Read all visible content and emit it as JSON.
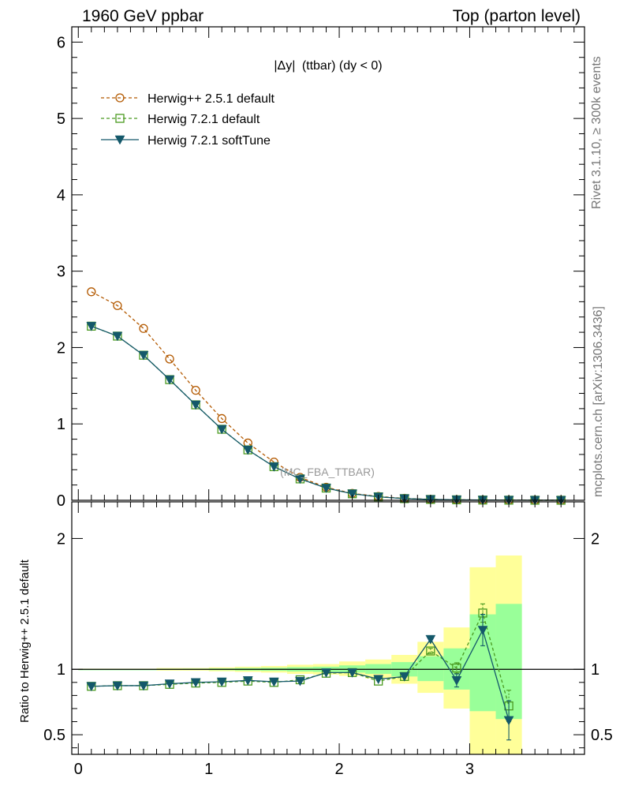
{
  "header": {
    "left": "1960 GeV ppbar",
    "right": "Top (parton level)"
  },
  "side_labels": {
    "rivet": "Rivet 3.1.10, ≥ 300k events",
    "mcplots": "mcplots.cern.ch [arXiv:1306.3436]"
  },
  "observable": {
    "main": "|Δy|",
    "sub": "(ttbar) (dy < 0)"
  },
  "watermark": "(MC_FBA_TTBAR)",
  "ratio_ylabel": "Ratio to Herwig++ 2.5.1 default",
  "colors": {
    "herwigpp": "#b35900",
    "herwig721": "#4a9a20",
    "softtune": "#14586a",
    "band_yellow": "#ffff99",
    "band_green": "#99ff99"
  },
  "chart_data": [
    {
      "type": "line",
      "panel": "main",
      "xlim": [
        -0.05,
        3.88
      ],
      "ylim": [
        0,
        6.2
      ],
      "yticks": [
        "0",
        "1",
        "2",
        "3",
        "4",
        "5",
        "6"
      ],
      "x": [
        0.1,
        0.3,
        0.5,
        0.7,
        0.9,
        1.1,
        1.3,
        1.5,
        1.7,
        1.9,
        2.1,
        2.3,
        2.5,
        2.7,
        2.9,
        3.1,
        3.3,
        3.5,
        3.7
      ],
      "series": [
        {
          "name": "Herwig++ 2.5.1 default",
          "marker": "open-circle",
          "style": "dashed",
          "values": [
            2.73,
            2.55,
            2.25,
            1.85,
            1.44,
            1.07,
            0.75,
            0.5,
            0.3,
            0.17,
            0.09,
            0.05,
            0.025,
            0.012,
            0.006,
            0.003,
            0.0015,
            0.0008,
            0.0004
          ]
        },
        {
          "name": "Herwig 7.2.1 default",
          "marker": "open-square",
          "style": "dashed",
          "values": [
            2.28,
            2.15,
            1.9,
            1.58,
            1.25,
            0.93,
            0.66,
            0.44,
            0.28,
            0.16,
            0.085,
            0.045,
            0.022,
            0.011,
            0.006,
            0.003,
            0.0015,
            0.0008,
            0.0004
          ]
        },
        {
          "name": "Herwig 7.2.1 softTune",
          "marker": "filled-triangle-down",
          "style": "solid",
          "values": [
            2.28,
            2.15,
            1.9,
            1.58,
            1.25,
            0.93,
            0.66,
            0.44,
            0.28,
            0.16,
            0.085,
            0.045,
            0.022,
            0.011,
            0.006,
            0.003,
            0.0015,
            0.0008,
            0.0004
          ]
        }
      ]
    },
    {
      "type": "line",
      "panel": "ratio",
      "xlim": [
        -0.05,
        3.88
      ],
      "ylim": [
        0.35,
        2.28
      ],
      "yticks": [
        "0.5",
        "1",
        "2"
      ],
      "xticks": [
        "0",
        "1",
        "2",
        "3"
      ],
      "reference": 1.0,
      "band_bins": [
        0,
        0.2,
        0.4,
        0.6,
        0.8,
        1.0,
        1.2,
        1.4,
        1.6,
        1.8,
        2.0,
        2.2,
        2.4,
        2.6,
        2.8,
        3.0,
        3.2,
        3.4
      ],
      "yellow_band": [
        [
          0.995,
          1.005
        ],
        [
          0.995,
          1.005
        ],
        [
          0.995,
          1.005
        ],
        [
          0.99,
          1.01
        ],
        [
          0.99,
          1.01
        ],
        [
          0.985,
          1.015
        ],
        [
          0.98,
          1.02
        ],
        [
          0.975,
          1.025
        ],
        [
          0.965,
          1.035
        ],
        [
          0.96,
          1.04
        ],
        [
          0.95,
          1.06
        ],
        [
          0.93,
          1.075
        ],
        [
          0.89,
          1.11
        ],
        [
          0.82,
          1.21
        ],
        [
          0.7,
          1.32
        ],
        [
          0.32,
          1.78
        ],
        [
          0.32,
          1.87
        ]
      ],
      "green_band": [
        [
          0.998,
          1.002
        ],
        [
          0.998,
          1.002
        ],
        [
          0.998,
          1.002
        ],
        [
          0.996,
          1.004
        ],
        [
          0.995,
          1.005
        ],
        [
          0.993,
          1.007
        ],
        [
          0.99,
          1.01
        ],
        [
          0.988,
          1.012
        ],
        [
          0.983,
          1.017
        ],
        [
          0.98,
          1.02
        ],
        [
          0.975,
          1.03
        ],
        [
          0.965,
          1.04
        ],
        [
          0.945,
          1.055
        ],
        [
          0.91,
          1.1
        ],
        [
          0.845,
          1.16
        ],
        [
          0.68,
          1.42
        ],
        [
          0.62,
          1.5
        ]
      ],
      "x": [
        0.1,
        0.3,
        0.5,
        0.7,
        0.9,
        1.1,
        1.3,
        1.5,
        1.7,
        1.9,
        2.1,
        2.3,
        2.5,
        2.7,
        2.9,
        3.1,
        3.3
      ],
      "series": [
        {
          "name": "Herwig 7.2.1 default",
          "marker": "open-square",
          "style": "dashed",
          "values": [
            0.87,
            0.875,
            0.875,
            0.885,
            0.895,
            0.9,
            0.91,
            0.9,
            0.92,
            0.97,
            0.975,
            0.91,
            0.945,
            1.14,
            1.01,
            1.43,
            0.72
          ],
          "errors": [
            0,
            0,
            0,
            0,
            0,
            0,
            0,
            0,
            0,
            0,
            0,
            0,
            0,
            0.02,
            0.04,
            0.07,
            0.12
          ]
        },
        {
          "name": "Herwig 7.2.1 softTune",
          "marker": "filled-triangle-down",
          "style": "solid",
          "values": [
            0.87,
            0.875,
            0.875,
            0.89,
            0.9,
            0.905,
            0.915,
            0.905,
            0.91,
            0.975,
            0.975,
            0.925,
            0.945,
            1.23,
            0.915,
            1.3,
            0.61
          ],
          "errors": [
            0,
            0,
            0,
            0,
            0,
            0,
            0,
            0,
            0,
            0,
            0,
            0,
            0,
            0.02,
            0.05,
            0.12,
            0.15
          ]
        }
      ]
    }
  ]
}
